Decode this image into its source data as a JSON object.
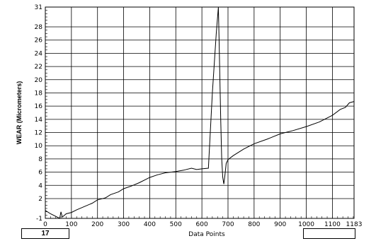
{
  "chart_data": {
    "type": "line",
    "title": "",
    "xlabel": "Data Points",
    "ylabel": "WEAR (Micrometers)",
    "xlim": [
      0,
      1183
    ],
    "ylim": [
      -1,
      31
    ],
    "x_ticks": [
      0,
      100,
      200,
      300,
      400,
      500,
      600,
      700,
      800,
      900,
      1000,
      1100,
      1183
    ],
    "y_ticks": [
      -1,
      2,
      4,
      6,
      8,
      10,
      12,
      14,
      16,
      18,
      20,
      22,
      24,
      26,
      28,
      31
    ],
    "grid": true,
    "series": [
      {
        "points": [
          [
            0,
            0.2
          ],
          [
            20,
            -0.3
          ],
          [
            45,
            -0.8
          ],
          [
            55,
            -1.0
          ],
          [
            60,
            0.0
          ],
          [
            65,
            -0.8
          ],
          [
            80,
            -0.3
          ],
          [
            100,
            -0.1
          ],
          [
            120,
            0.3
          ],
          [
            150,
            0.8
          ],
          [
            180,
            1.3
          ],
          [
            200,
            1.8
          ],
          [
            230,
            2.1
          ],
          [
            250,
            2.6
          ],
          [
            280,
            3.0
          ],
          [
            300,
            3.5
          ],
          [
            330,
            3.9
          ],
          [
            360,
            4.4
          ],
          [
            400,
            5.2
          ],
          [
            430,
            5.6
          ],
          [
            460,
            5.9
          ],
          [
            500,
            6.1
          ],
          [
            530,
            6.3
          ],
          [
            560,
            6.6
          ],
          [
            580,
            6.4
          ],
          [
            600,
            6.5
          ],
          [
            625,
            6.6
          ],
          [
            640,
            18.0
          ],
          [
            655,
            27.0
          ],
          [
            663,
            31.0
          ],
          [
            667,
            24.0
          ],
          [
            672,
            14.0
          ],
          [
            676,
            8.0
          ],
          [
            680,
            5.2
          ],
          [
            684,
            4.2
          ],
          [
            688,
            5.5
          ],
          [
            693,
            7.3
          ],
          [
            700,
            7.9
          ],
          [
            720,
            8.5
          ],
          [
            760,
            9.5
          ],
          [
            800,
            10.3
          ],
          [
            850,
            11.0
          ],
          [
            900,
            11.8
          ],
          [
            950,
            12.3
          ],
          [
            1000,
            12.9
          ],
          [
            1050,
            13.6
          ],
          [
            1100,
            14.6
          ],
          [
            1130,
            15.5
          ],
          [
            1150,
            15.8
          ],
          [
            1165,
            16.5
          ],
          [
            1183,
            16.7
          ]
        ]
      }
    ]
  },
  "footer": {
    "left_box_value": "17",
    "right_box_value": ""
  }
}
